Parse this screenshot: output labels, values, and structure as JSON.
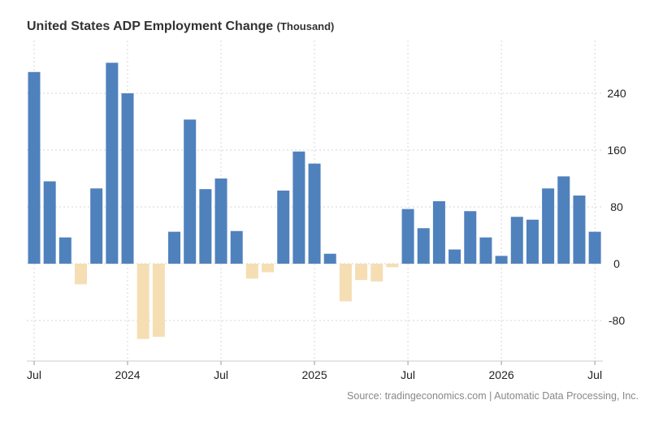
{
  "header": {
    "title": "United States ADP Employment Change",
    "unit": "(Thousand)"
  },
  "source": "Source: tradingeconomics.com | Automatic Data Processing, Inc.",
  "colors": {
    "positive": "#4f81bd",
    "negative": "#f5deb3",
    "grid": "#d6d6d6"
  },
  "chart_data": {
    "type": "bar",
    "title": "United States ADP Employment Change",
    "unit": "Thousand",
    "ylim": [
      -140,
      310
    ],
    "yticks": [
      -80,
      0,
      80,
      160,
      240
    ],
    "ytick_labels": [
      "-80",
      "0",
      "80",
      "160",
      "240"
    ],
    "xtick_labels": [
      "Jul",
      "2024",
      "Jul",
      "2025",
      "Jul",
      "2026",
      "Jul"
    ],
    "xtick_positions": [
      0,
      6,
      12,
      18,
      24,
      30,
      36
    ],
    "grid": true,
    "categories": [
      "Jul 2023",
      "Aug 2023",
      "Sep 2023",
      "Oct 2023",
      "Nov 2023",
      "Dec 2023",
      "Jan 2024",
      "Feb 2024",
      "Mar 2024",
      "Apr 2024",
      "May 2024",
      "Jun 2024",
      "Jul 2024",
      "Aug 2024",
      "Sep 2024",
      "Oct 2024",
      "Nov 2024",
      "Dec 2024",
      "Jan 2025",
      "Feb 2025",
      "Mar 2025",
      "Apr 2025",
      "May 2025",
      "Jun 2025",
      "Jul 2025",
      "Aug 2025",
      "Sep 2025",
      "Oct 2025",
      "Nov 2025",
      "Dec 2025",
      "Jan 2026",
      "Feb 2026",
      "Mar 2026",
      "Apr 2026",
      "May 2026",
      "Jun 2026",
      "Jul 2026"
    ],
    "values": [
      270,
      116,
      37,
      -29,
      106,
      283,
      240,
      -106,
      -103,
      45,
      203,
      105,
      120,
      46,
      -21,
      -12,
      103,
      158,
      141,
      14,
      -53,
      -23,
      -25,
      -5,
      77,
      50,
      88,
      20,
      74,
      37,
      11,
      66,
      62,
      106,
      123,
      96,
      45
    ]
  }
}
